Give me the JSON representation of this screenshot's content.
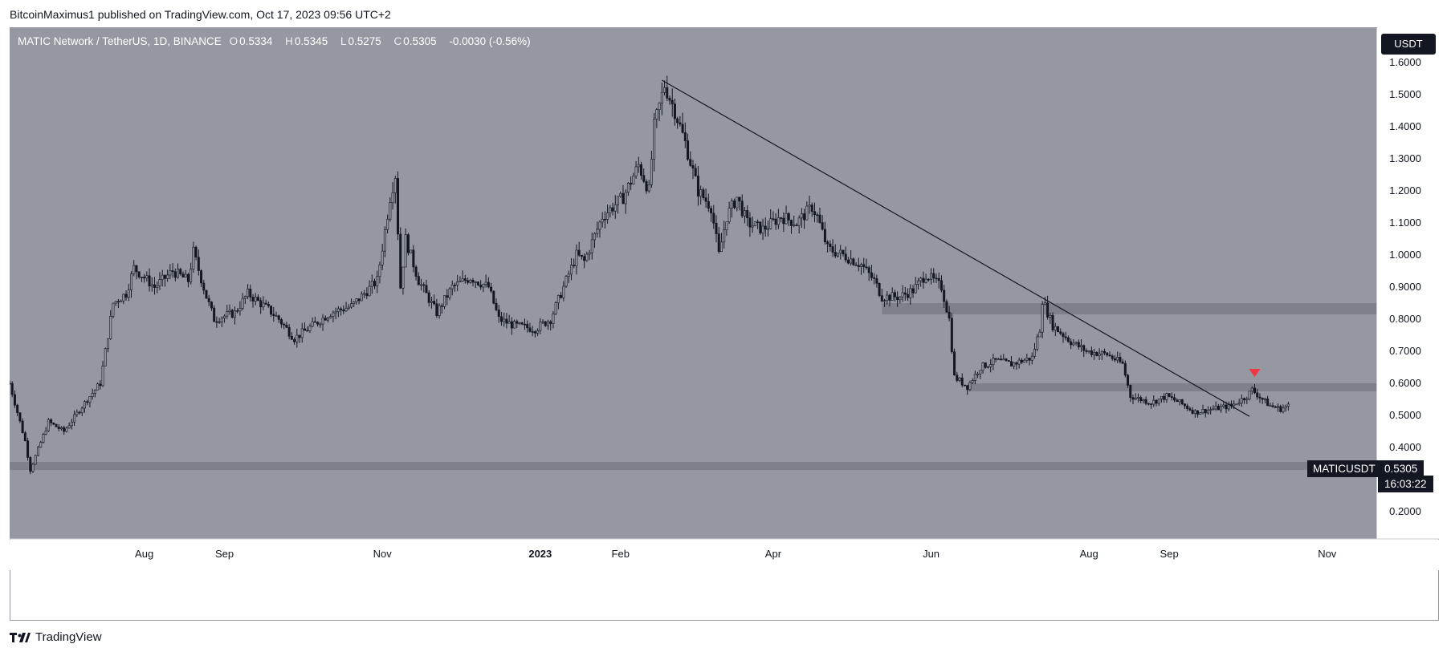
{
  "attribution": "BitcoinMaximus1 published on TradingView.com, Oct 17, 2023 09:56 UTC+2",
  "legend": {
    "title": "MATIC Network / TetherUS, 1D, BINANCE",
    "open_label": "O",
    "open": "0.5334",
    "high_label": "H",
    "high": "0.5345",
    "low_label": "L",
    "low": "0.5275",
    "close_label": "C",
    "close": "0.5305",
    "change": "-0.0030 (-0.56%)"
  },
  "currency": "USDT",
  "symbol": "MATICUSDT",
  "last_price": "0.5305",
  "countdown": "16:03:22",
  "footer_brand": "TradingView",
  "colors": {
    "plot_bg": "#9598a1",
    "candle": "#131722",
    "zone": "#7b7e87",
    "marker": "#f23645"
  },
  "chart_data": {
    "type": "candlestick",
    "title": "MATIC Network / TetherUS, 1D, BINANCE",
    "xlabel": "",
    "ylabel": "",
    "ylim": [
      0.2,
      1.7
    ],
    "y_ticks": [
      "1.6000",
      "1.5000",
      "1.4000",
      "1.3000",
      "1.2000",
      "1.1000",
      "1.0000",
      "0.9000",
      "0.8000",
      "0.7000",
      "0.6000",
      "0.5000",
      "0.4000",
      "0.3000",
      "0.2000"
    ],
    "x_ticks": [
      {
        "label": "Aug",
        "date": "2022-08-01"
      },
      {
        "label": "Sep",
        "date": "2022-09-01"
      },
      {
        "label": "Nov",
        "date": "2022-11-01"
      },
      {
        "label": "2023",
        "date": "2023-01-01"
      },
      {
        "label": "Feb",
        "date": "2023-02-01"
      },
      {
        "label": "Apr",
        "date": "2023-04-01"
      },
      {
        "label": "Jun",
        "date": "2023-06-01"
      },
      {
        "label": "Aug",
        "date": "2023-08-01"
      },
      {
        "label": "Sep",
        "date": "2023-09-01"
      },
      {
        "label": "Nov",
        "date": "2023-11-01"
      }
    ],
    "x_range": [
      "2022-06-10",
      "2023-11-20"
    ],
    "price_path": [
      [
        "2022-06-10",
        0.6
      ],
      [
        "2022-06-16",
        0.42
      ],
      [
        "2022-06-18",
        0.33
      ],
      [
        "2022-06-25",
        0.48
      ],
      [
        "2022-07-01",
        0.45
      ],
      [
        "2022-07-10",
        0.55
      ],
      [
        "2022-07-15",
        0.6
      ],
      [
        "2022-07-20",
        0.85
      ],
      [
        "2022-07-25",
        0.88
      ],
      [
        "2022-07-28",
        0.96
      ],
      [
        "2022-08-05",
        0.9
      ],
      [
        "2022-08-12",
        0.95
      ],
      [
        "2022-08-18",
        0.92
      ],
      [
        "2022-08-20",
        1.01
      ],
      [
        "2022-08-25",
        0.87
      ],
      [
        "2022-08-28",
        0.8
      ],
      [
        "2022-09-05",
        0.82
      ],
      [
        "2022-09-10",
        0.88
      ],
      [
        "2022-09-18",
        0.83
      ],
      [
        "2022-09-22",
        0.8
      ],
      [
        "2022-09-28",
        0.74
      ],
      [
        "2022-10-05",
        0.78
      ],
      [
        "2022-10-12",
        0.82
      ],
      [
        "2022-10-20",
        0.84
      ],
      [
        "2022-10-25",
        0.88
      ],
      [
        "2022-10-30",
        0.92
      ],
      [
        "2022-11-04",
        1.18
      ],
      [
        "2022-11-06",
        1.25
      ],
      [
        "2022-11-08",
        0.9
      ],
      [
        "2022-11-10",
        1.05
      ],
      [
        "2022-11-15",
        0.92
      ],
      [
        "2022-11-22",
        0.82
      ],
      [
        "2022-11-28",
        0.9
      ],
      [
        "2022-12-05",
        0.93
      ],
      [
        "2022-12-12",
        0.9
      ],
      [
        "2022-12-16",
        0.8
      ],
      [
        "2022-12-22",
        0.78
      ],
      [
        "2022-12-30",
        0.77
      ],
      [
        "2023-01-05",
        0.8
      ],
      [
        "2023-01-10",
        0.9
      ],
      [
        "2023-01-15",
        1.0
      ],
      [
        "2023-01-18",
        0.98
      ],
      [
        "2023-01-25",
        1.12
      ],
      [
        "2023-02-02",
        1.18
      ],
      [
        "2023-02-08",
        1.28
      ],
      [
        "2023-02-12",
        1.2
      ],
      [
        "2023-02-14",
        1.4
      ],
      [
        "2023-02-18",
        1.53
      ],
      [
        "2023-02-22",
        1.45
      ],
      [
        "2023-02-26",
        1.35
      ],
      [
        "2023-03-03",
        1.2
      ],
      [
        "2023-03-08",
        1.15
      ],
      [
        "2023-03-11",
        1.0
      ],
      [
        "2023-03-14",
        1.12
      ],
      [
        "2023-03-18",
        1.18
      ],
      [
        "2023-03-22",
        1.1
      ],
      [
        "2023-03-28",
        1.08
      ],
      [
        "2023-04-04",
        1.12
      ],
      [
        "2023-04-10",
        1.1
      ],
      [
        "2023-04-16",
        1.15
      ],
      [
        "2023-04-18",
        1.12
      ],
      [
        "2023-04-22",
        1.02
      ],
      [
        "2023-04-28",
        1.0
      ],
      [
        "2023-05-05",
        0.97
      ],
      [
        "2023-05-10",
        0.92
      ],
      [
        "2023-05-13",
        0.87
      ],
      [
        "2023-05-20",
        0.87
      ],
      [
        "2023-05-25",
        0.89
      ],
      [
        "2023-05-30",
        0.94
      ],
      [
        "2023-06-05",
        0.9
      ],
      [
        "2023-06-08",
        0.8
      ],
      [
        "2023-06-10",
        0.62
      ],
      [
        "2023-06-15",
        0.59
      ],
      [
        "2023-06-20",
        0.65
      ],
      [
        "2023-06-26",
        0.67
      ],
      [
        "2023-07-02",
        0.66
      ],
      [
        "2023-07-10",
        0.68
      ],
      [
        "2023-07-13",
        0.77
      ],
      [
        "2023-07-14",
        0.86
      ],
      [
        "2023-07-18",
        0.78
      ],
      [
        "2023-07-25",
        0.73
      ],
      [
        "2023-07-31",
        0.7
      ],
      [
        "2023-08-08",
        0.69
      ],
      [
        "2023-08-14",
        0.66
      ],
      [
        "2023-08-17",
        0.56
      ],
      [
        "2023-08-25",
        0.54
      ],
      [
        "2023-08-31",
        0.56
      ],
      [
        "2023-09-05",
        0.54
      ],
      [
        "2023-09-11",
        0.51
      ],
      [
        "2023-09-18",
        0.52
      ],
      [
        "2023-09-25",
        0.53
      ],
      [
        "2023-10-01",
        0.56
      ],
      [
        "2023-10-03",
        0.58
      ],
      [
        "2023-10-07",
        0.55
      ],
      [
        "2023-10-10",
        0.53
      ],
      [
        "2023-10-14",
        0.52
      ],
      [
        "2023-10-17",
        0.53
      ]
    ],
    "trendline": {
      "from": [
        "2023-02-17",
        1.545
      ],
      "to": [
        "2023-10-02",
        0.497
      ]
    },
    "zones": [
      {
        "from": "2022-06-10",
        "to": "2023-11-20",
        "low": 0.33,
        "high": 0.355
      },
      {
        "from": "2023-05-13",
        "to": "2023-11-20",
        "low": 0.815,
        "high": 0.85
      },
      {
        "from": "2023-06-15",
        "to": "2023-11-20",
        "low": 0.575,
        "high": 0.6
      }
    ],
    "marker": {
      "date": "2023-10-04",
      "price": 0.63,
      "shape": "down-triangle"
    }
  }
}
